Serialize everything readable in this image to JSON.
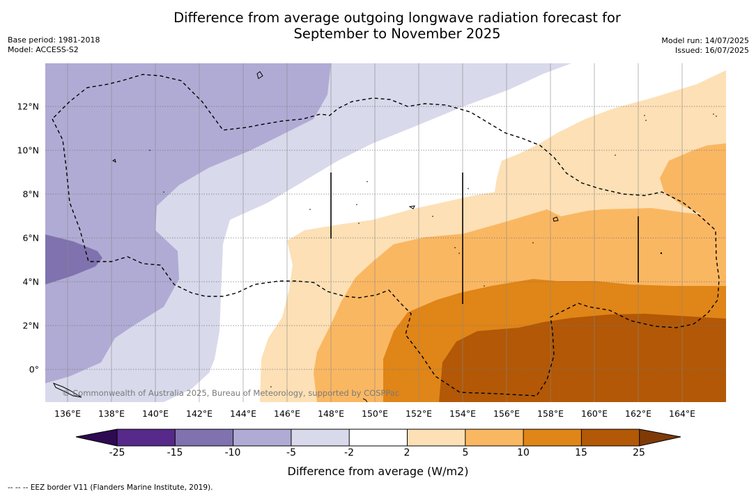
{
  "title": {
    "line1": "Difference from average outgoing longwave radiation forecast for",
    "line2": "September to November 2025"
  },
  "meta_left": {
    "base_period": "Base period: 1981-2018",
    "model": "Model: ACCESS-S2"
  },
  "meta_right": {
    "model_run": "Model run: 14/07/2025",
    "issued": "Issued: 16/07/2025"
  },
  "map": {
    "lat_labels": [
      "12°N",
      "10°N",
      "8°N",
      "6°N",
      "4°N",
      "2°N",
      "0°"
    ],
    "lon_labels": [
      "136°E",
      "138°E",
      "140°E",
      "142°E",
      "144°E",
      "146°E",
      "148°E",
      "150°E",
      "152°E",
      "154°E",
      "156°E",
      "158°E",
      "160°E",
      "162°E",
      "164°E"
    ],
    "copyright": "© Commonwealth of Australia 2025, Bureau of Meteorology, supported by COSPPac",
    "zones": [
      {
        "range": "-10 to -5",
        "color": "#b0abd4"
      },
      {
        "range": "-5 to -2",
        "color": "#d8d9eb"
      },
      {
        "range": "-2 to 2",
        "color": "#ffffff"
      },
      {
        "range": "2 to 5",
        "color": "#fde0b5"
      },
      {
        "range": "5 to 10",
        "color": "#fab762"
      },
      {
        "range": "10 to 15",
        "color": "#e08517"
      },
      {
        "range": "15 to 25",
        "color": "#b25806"
      },
      {
        "range": "-15 to -10",
        "color": "#7f72ae"
      }
    ]
  },
  "colorbar": {
    "ticks": [
      "-25",
      "-15",
      "-10",
      "-5",
      "-2",
      "2",
      "5",
      "10",
      "15",
      "25"
    ],
    "colors": [
      "#56298a",
      "#7f72ae",
      "#b0abd4",
      "#d8d9eb",
      "#ffffff",
      "#fde0b5",
      "#fab762",
      "#e08517",
      "#b25806"
    ],
    "under_color": "#2e0a52",
    "over_color": "#7f3a06",
    "title": "Difference from average (W/m2)"
  },
  "footnote": "-- -- -- EEZ border V11 (Flanders Marine Institute, 2019)."
}
